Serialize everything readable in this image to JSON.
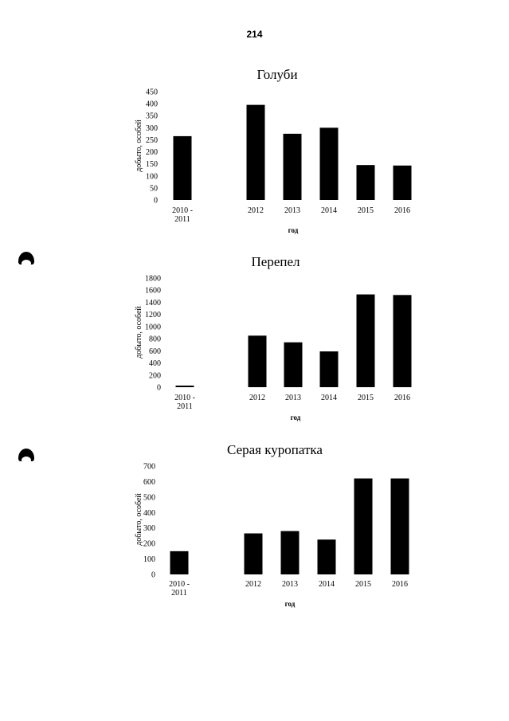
{
  "page": {
    "number": "214"
  },
  "chart_data": [
    {
      "type": "bar",
      "title": "Голуби",
      "ylabel": "добыто, особей",
      "xlabel": "год",
      "categories": [
        "2010 - 2011",
        "2012",
        "2013",
        "2014",
        "2015",
        "2016"
      ],
      "values": [
        265,
        395,
        275,
        300,
        145,
        143
      ],
      "ylim": [
        0,
        450
      ],
      "yticks": [
        0,
        50,
        100,
        150,
        200,
        250,
        300,
        350,
        400,
        450
      ],
      "grid": false,
      "legend": "none",
      "bar_color": "#000000"
    },
    {
      "type": "bar",
      "title": "Перепел",
      "ylabel": "добыто, особей",
      "xlabel": "год",
      "categories": [
        "2010 - 2011",
        "2012",
        "2013",
        "2014",
        "2015",
        "2016"
      ],
      "values": [
        20,
        850,
        740,
        590,
        1530,
        1520
      ],
      "ylim": [
        0,
        1800
      ],
      "yticks": [
        0,
        200,
        400,
        600,
        800,
        1000,
        1200,
        1400,
        1600,
        1800
      ],
      "grid": false,
      "legend": "none",
      "bar_color": "#000000"
    },
    {
      "type": "bar",
      "title": "Серая куропатка",
      "ylabel": "добыто, особей",
      "xlabel": "год",
      "categories": [
        "2010 - 2011",
        "2012",
        "2013",
        "2014",
        "2015",
        "2016"
      ],
      "values": [
        150,
        265,
        280,
        225,
        620,
        620
      ],
      "ylim": [
        0,
        700
      ],
      "yticks": [
        0,
        100,
        200,
        300,
        400,
        500,
        600,
        700
      ],
      "grid": false,
      "legend": "none",
      "bar_color": "#000000"
    }
  ]
}
